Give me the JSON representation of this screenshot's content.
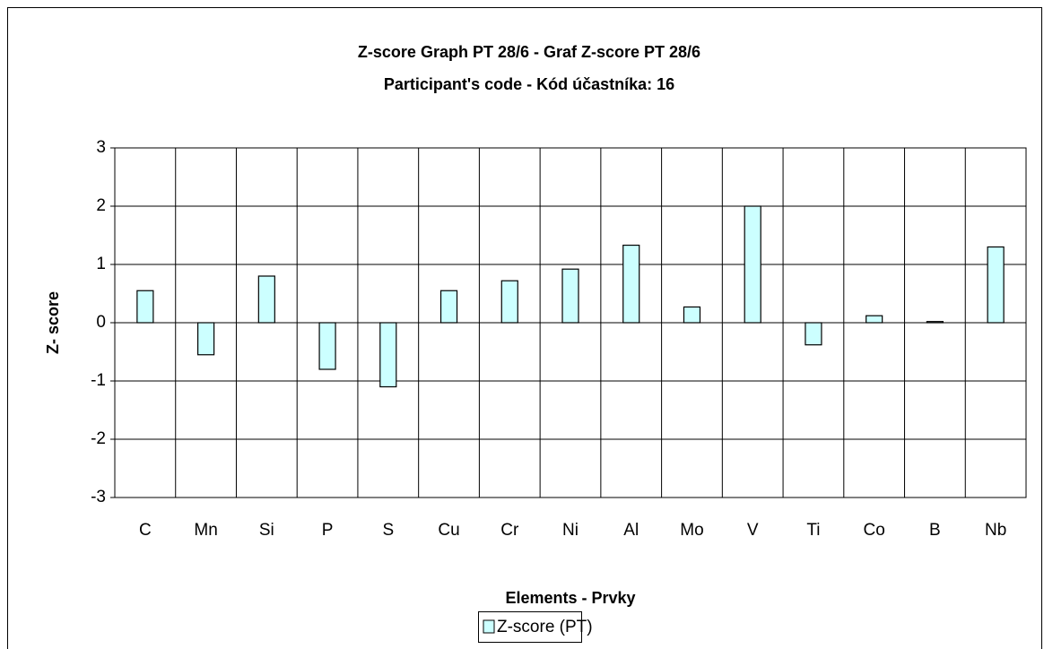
{
  "chart_data": {
    "type": "bar",
    "title": "Z-score Graph PT 28/6 - Graf Z-score PT 28/6",
    "subtitle": "Participant's code - Kód účastníka:  16",
    "x_label": "Elements - Prvky",
    "y_label": "Z- score",
    "categories": [
      "C",
      "Mn",
      "Si",
      "P",
      "S",
      "Cu",
      "Cr",
      "Ni",
      "Al",
      "Mo",
      "V",
      "Ti",
      "Co",
      "B",
      "Nb"
    ],
    "series": [
      {
        "name": "Z-score (PT)",
        "color": "#ccffff",
        "values": [
          0.55,
          -0.55,
          0.8,
          -0.8,
          -1.1,
          0.55,
          0.72,
          0.92,
          1.33,
          0.27,
          2.0,
          -0.38,
          0.12,
          0.02,
          1.3
        ]
      }
    ],
    "ylim": [
      -3,
      3
    ],
    "yticks": [
      -3,
      -2,
      -1,
      0,
      1,
      2,
      3
    ],
    "grid": true,
    "legend": "bottom"
  }
}
